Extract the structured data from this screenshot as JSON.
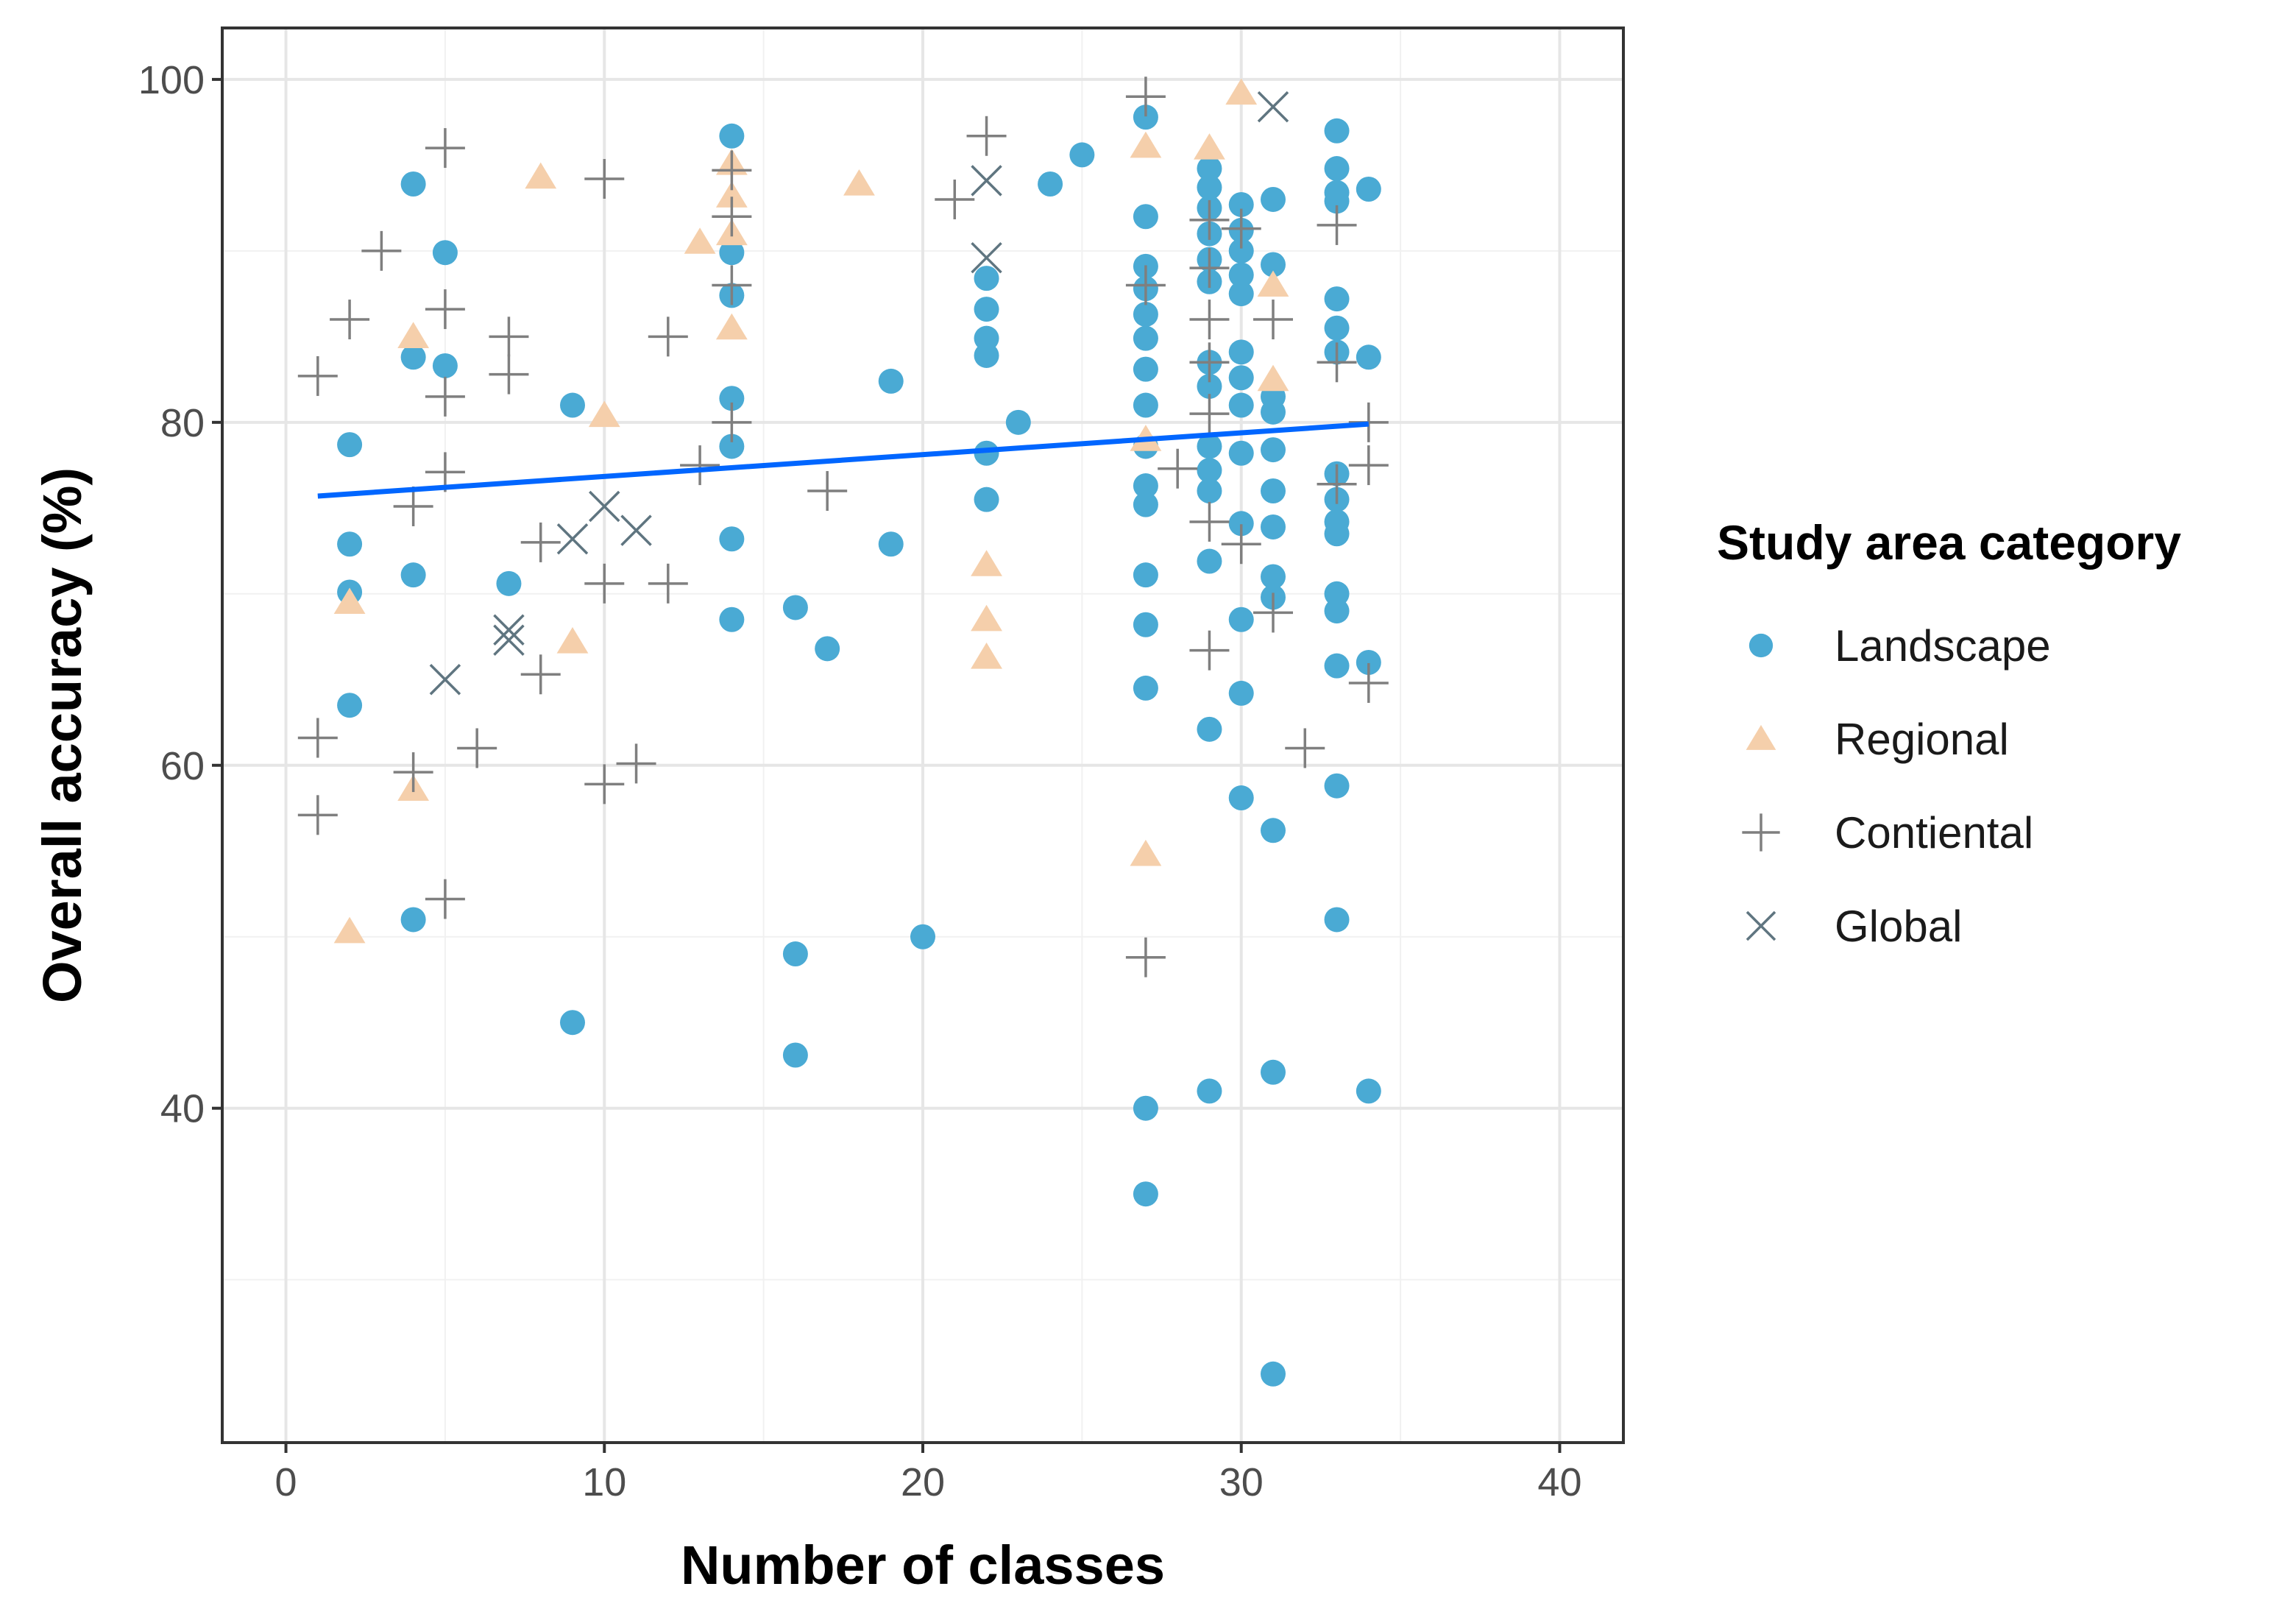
{
  "chart_data": {
    "type": "scatter",
    "title": "",
    "xlabel": "Number of classes",
    "ylabel": "Overall accuracy (%)",
    "xlim": [
      -2,
      42
    ],
    "ylim": [
      20.5,
      103
    ],
    "x_ticks": [
      0,
      10,
      20,
      30,
      40
    ],
    "y_ticks": [
      40,
      60,
      80,
      100
    ],
    "x_tick_labels": [
      "0",
      "10",
      "20",
      "30",
      "40"
    ],
    "y_tick_labels": [
      "40",
      "60",
      "80",
      "100"
    ],
    "grid": true,
    "legend": {
      "title": "Study area category",
      "position": "right",
      "entries": [
        "Landscape",
        "Regional",
        "Contiental",
        "Global"
      ]
    },
    "trend_line": {
      "x": [
        1,
        34
      ],
      "y": [
        75.7,
        79.9
      ],
      "color": "#0066ff"
    },
    "colors": {
      "Landscape": "#4aaad4",
      "Regional": "#f5cfab",
      "Contiental": "#7f7f7f",
      "Global": "#5f7580"
    },
    "series": [
      {
        "name": "Landscape",
        "marker": "circle",
        "points": [
          [
            2,
            78.7
          ],
          [
            2,
            72.9
          ],
          [
            2,
            70.1
          ],
          [
            2,
            63.5
          ],
          [
            4,
            93.9
          ],
          [
            4,
            83.8
          ],
          [
            4,
            71.1
          ],
          [
            4,
            51
          ],
          [
            5,
            89.9
          ],
          [
            5,
            83.3
          ],
          [
            7,
            70.6
          ],
          [
            9,
            81
          ],
          [
            9,
            45
          ],
          [
            14,
            96.7
          ],
          [
            14,
            89.9
          ],
          [
            14,
            87.4
          ],
          [
            14,
            81.4
          ],
          [
            14,
            78.6
          ],
          [
            14,
            73.2
          ],
          [
            14,
            68.5
          ],
          [
            16,
            69.2
          ],
          [
            16,
            49
          ],
          [
            16,
            43.1
          ],
          [
            17,
            66.8
          ],
          [
            19,
            82.4
          ],
          [
            19,
            72.9
          ],
          [
            20,
            50
          ],
          [
            22,
            88.4
          ],
          [
            22,
            86.6
          ],
          [
            22,
            84.9
          ],
          [
            22,
            83.9
          ],
          [
            22,
            78.2
          ],
          [
            22,
            75.5
          ],
          [
            23,
            80
          ],
          [
            24,
            93.9
          ],
          [
            25,
            95.6
          ],
          [
            27,
            97.8
          ],
          [
            27,
            92
          ],
          [
            27,
            89.1
          ],
          [
            27,
            87.8
          ],
          [
            27,
            86.3
          ],
          [
            27,
            84.9
          ],
          [
            27,
            83.1
          ],
          [
            27,
            81
          ],
          [
            27,
            78.6
          ],
          [
            27,
            76.3
          ],
          [
            27,
            75.2
          ],
          [
            27,
            71.1
          ],
          [
            27,
            68.2
          ],
          [
            27,
            64.5
          ],
          [
            27,
            40
          ],
          [
            27,
            35
          ],
          [
            29,
            94.8
          ],
          [
            29,
            93.7
          ],
          [
            29,
            92.5
          ],
          [
            29,
            91
          ],
          [
            29,
            89.5
          ],
          [
            29,
            88.2
          ],
          [
            29,
            83.5
          ],
          [
            29,
            82.1
          ],
          [
            29,
            78.6
          ],
          [
            29,
            77.2
          ],
          [
            29,
            76
          ],
          [
            29,
            71.9
          ],
          [
            29,
            62.1
          ],
          [
            29,
            41
          ],
          [
            30,
            92.7
          ],
          [
            30,
            91.2
          ],
          [
            30,
            90
          ],
          [
            30,
            88.6
          ],
          [
            30,
            87.5
          ],
          [
            30,
            84.1
          ],
          [
            30,
            82.6
          ],
          [
            30,
            81
          ],
          [
            30,
            78.2
          ],
          [
            30,
            74.1
          ],
          [
            30,
            68.5
          ],
          [
            30,
            64.2
          ],
          [
            30,
            58.1
          ],
          [
            31,
            93
          ],
          [
            31,
            89.2
          ],
          [
            31,
            81.5
          ],
          [
            31,
            80.6
          ],
          [
            31,
            78.4
          ],
          [
            31,
            76
          ],
          [
            31,
            73.9
          ],
          [
            31,
            71
          ],
          [
            31,
            69.8
          ],
          [
            31,
            56.2
          ],
          [
            31,
            42.1
          ],
          [
            31,
            24.5
          ],
          [
            33,
            97
          ],
          [
            33,
            94.8
          ],
          [
            33,
            93.4
          ],
          [
            33,
            92.9
          ],
          [
            33,
            87.2
          ],
          [
            33,
            85.5
          ],
          [
            33,
            84.1
          ],
          [
            33,
            77
          ],
          [
            33,
            75.5
          ],
          [
            33,
            74.2
          ],
          [
            33,
            73.5
          ],
          [
            33,
            70
          ],
          [
            33,
            69
          ],
          [
            33,
            65.8
          ],
          [
            33,
            58.8
          ],
          [
            33,
            51
          ],
          [
            34,
            93.6
          ],
          [
            34,
            83.8
          ],
          [
            34,
            66
          ],
          [
            34,
            41
          ]
        ]
      },
      {
        "name": "Regional",
        "marker": "triangle",
        "points": [
          [
            2,
            69.5
          ],
          [
            2,
            50.3
          ],
          [
            4,
            85
          ],
          [
            4,
            58.6
          ],
          [
            8,
            94.3
          ],
          [
            9,
            67.2
          ],
          [
            10,
            80.4
          ],
          [
            13,
            90.5
          ],
          [
            14,
            95.1
          ],
          [
            14,
            93.2
          ],
          [
            14,
            91
          ],
          [
            14,
            85.5
          ],
          [
            18,
            93.9
          ],
          [
            22,
            71.7
          ],
          [
            22,
            68.5
          ],
          [
            22,
            66.3
          ],
          [
            27,
            96.1
          ],
          [
            27,
            79
          ],
          [
            27,
            54.8
          ],
          [
            29,
            96
          ],
          [
            30,
            99.2
          ],
          [
            31,
            88
          ],
          [
            31,
            82.5
          ]
        ]
      },
      {
        "name": "Contiental",
        "marker": "plus",
        "points": [
          [
            1,
            82.7
          ],
          [
            1,
            61.6
          ],
          [
            1,
            57.1
          ],
          [
            2,
            86
          ],
          [
            3,
            90
          ],
          [
            4,
            75.1
          ],
          [
            4,
            59.6
          ],
          [
            5,
            96
          ],
          [
            5,
            86.6
          ],
          [
            5,
            81.5
          ],
          [
            5,
            77.1
          ],
          [
            5,
            52.2
          ],
          [
            6,
            61
          ],
          [
            7,
            85
          ],
          [
            7,
            82.8
          ],
          [
            8,
            73
          ],
          [
            8,
            65.3
          ],
          [
            10,
            94.2
          ],
          [
            10,
            70.6
          ],
          [
            10,
            58.9
          ],
          [
            11,
            60.1
          ],
          [
            12,
            85
          ],
          [
            12,
            70.6
          ],
          [
            13,
            77.5
          ],
          [
            14,
            94.7
          ],
          [
            14,
            92
          ],
          [
            14,
            88
          ],
          [
            14,
            80
          ],
          [
            17,
            76
          ],
          [
            21,
            93
          ],
          [
            22,
            96.7
          ],
          [
            27,
            99
          ],
          [
            27,
            88
          ],
          [
            27,
            48.8
          ],
          [
            28,
            77.3
          ],
          [
            29,
            91.8
          ],
          [
            29,
            89
          ],
          [
            29,
            86
          ],
          [
            29,
            83.5
          ],
          [
            29,
            80.5
          ],
          [
            29,
            74.2
          ],
          [
            29,
            66.7
          ],
          [
            30,
            91.3
          ],
          [
            30,
            72.9
          ],
          [
            31,
            86
          ],
          [
            31,
            68.9
          ],
          [
            32,
            61
          ],
          [
            33,
            91.5
          ],
          [
            33,
            83.5
          ],
          [
            33,
            76.4
          ],
          [
            34,
            80
          ],
          [
            34,
            77.5
          ],
          [
            34,
            64.8
          ]
        ]
      },
      {
        "name": "Global",
        "marker": "x",
        "points": [
          [
            5,
            65
          ],
          [
            7,
            67.9
          ],
          [
            7,
            67.3
          ],
          [
            9,
            73.2
          ],
          [
            10,
            75.1
          ],
          [
            11,
            73.7
          ],
          [
            22,
            94.1
          ],
          [
            22,
            89.6
          ],
          [
            31,
            98.4
          ]
        ]
      }
    ]
  }
}
